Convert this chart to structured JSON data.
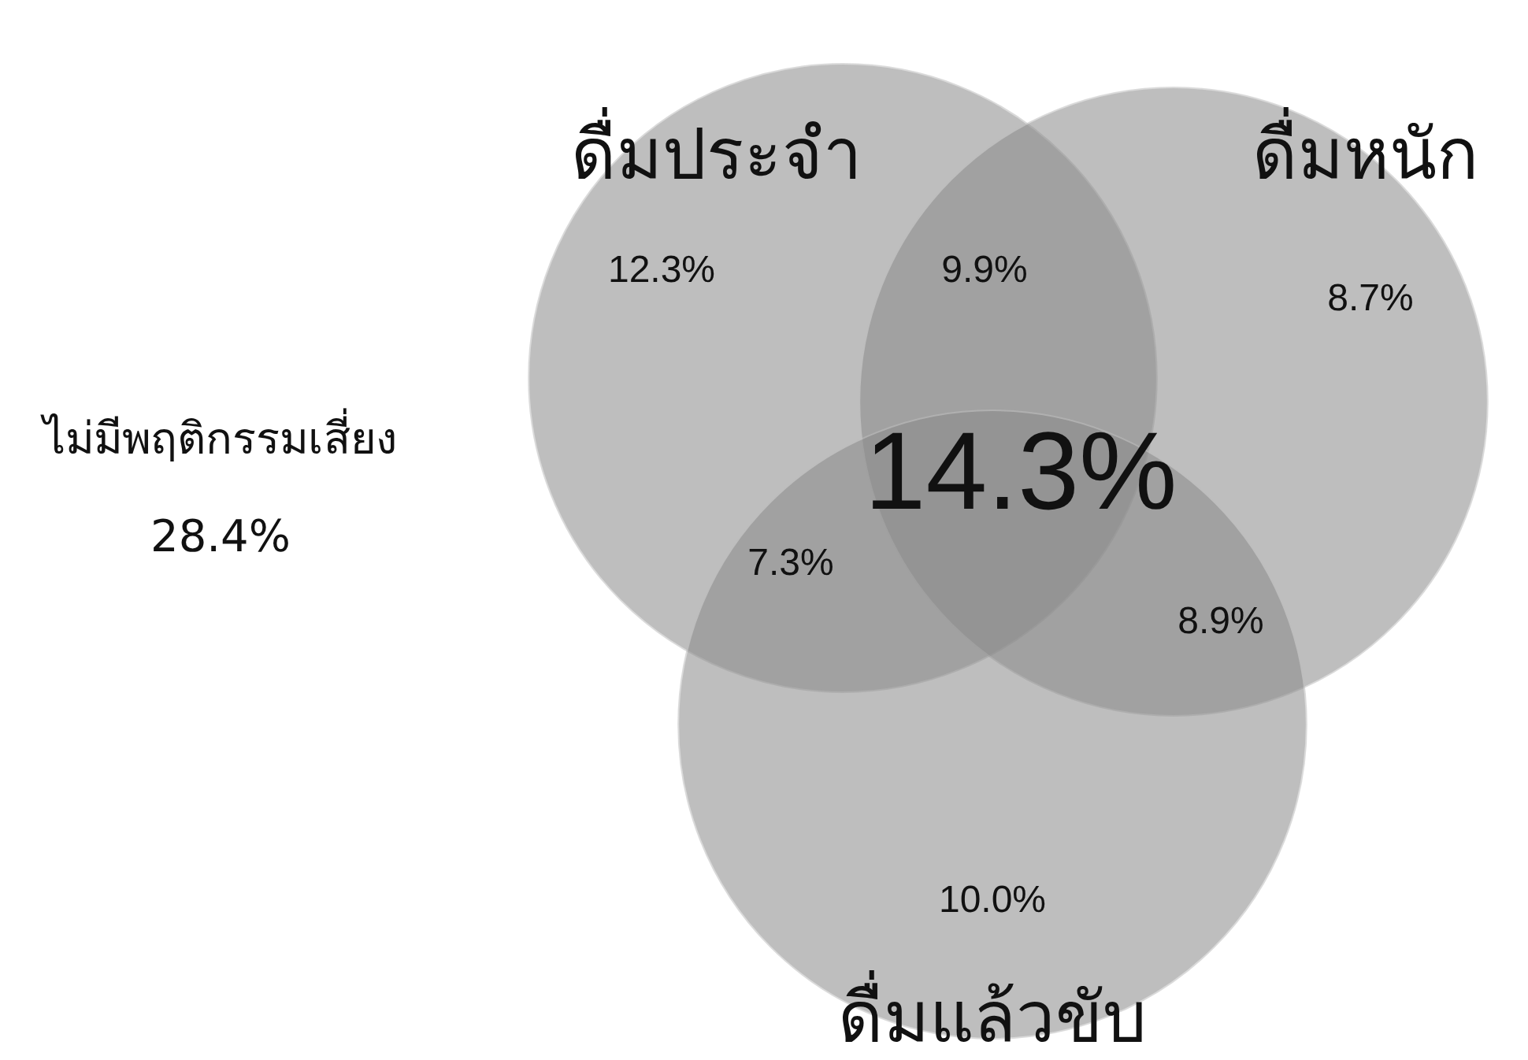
{
  "chart_data": {
    "type": "other",
    "annotations": [
      "ดื่มประจำ",
      "ดื่มหนัก",
      "ดื่มแล้วขับ",
      "12.3%",
      "9.9%",
      "8.7%",
      "7.3%",
      "14.3%",
      "8.9%",
      "10.0%"
    ],
    "categories": [
      "ไม่มีพฤติกรรมเสี่ยง"
    ],
    "values": [
      28.4
    ],
    "value_labels": [
      "28.4%"
    ]
  }
}
